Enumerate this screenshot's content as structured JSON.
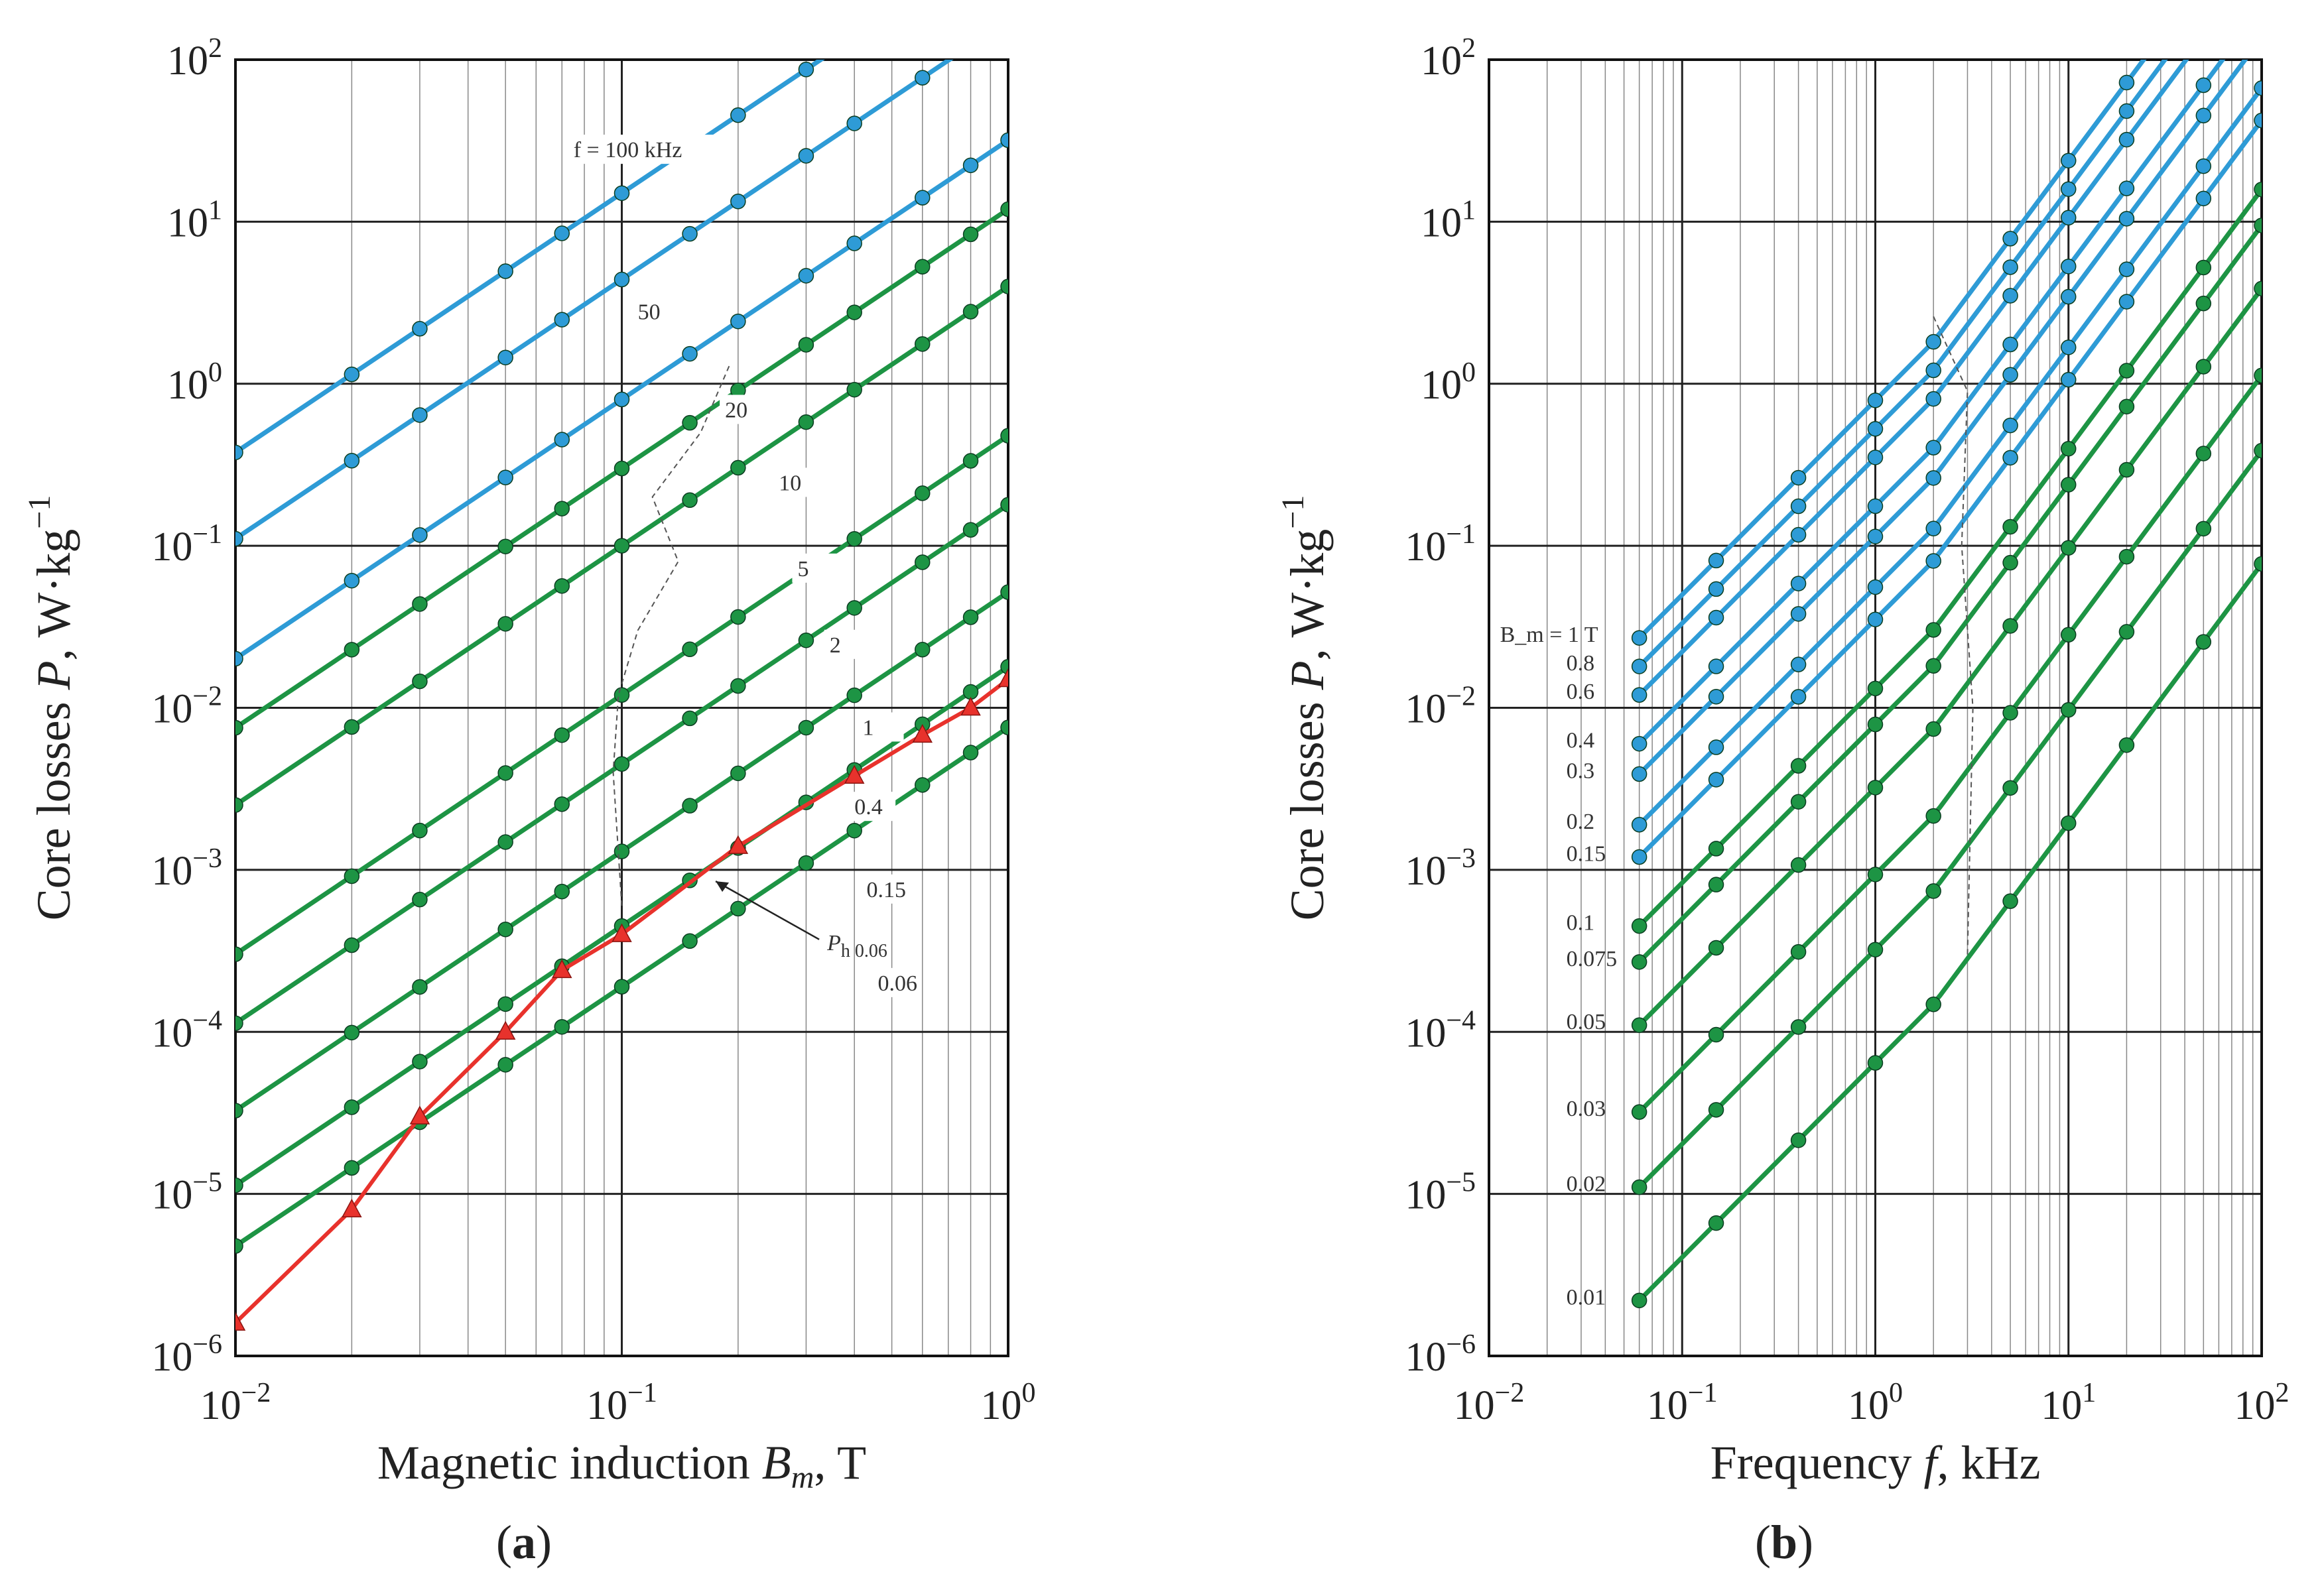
{
  "chart_data": [
    {
      "panel_label": "(a)",
      "panel_letter": "a",
      "type": "line",
      "scale": "log-log",
      "xlabel": "Magnetic induction B_m, T",
      "xlabel_parts": {
        "prefix": "Magnetic induction ",
        "var": "B",
        "sub": "m",
        "suffix": ", T"
      },
      "ylabel": "Core losses P, W·kg⁻¹",
      "ylabel_parts": {
        "prefix": "Core losses ",
        "var": "P",
        "suffix": ", W·kg",
        "sup": "−1"
      },
      "xlim": [
        0.01,
        1
      ],
      "ylim": [
        1e-06,
        100
      ],
      "x_ticks": [
        {
          "base": "10",
          "exp": "−2"
        },
        {
          "base": "10",
          "exp": "−1"
        },
        {
          "base": "10",
          "exp": "0"
        }
      ],
      "y_ticks": [
        {
          "base": "10",
          "exp": "−6"
        },
        {
          "base": "10",
          "exp": "−5"
        },
        {
          "base": "10",
          "exp": "−4"
        },
        {
          "base": "10",
          "exp": "−3"
        },
        {
          "base": "10",
          "exp": "−2"
        },
        {
          "base": "10",
          "exp": "−1"
        },
        {
          "base": "10",
          "exp": "0"
        },
        {
          "base": "10",
          "exp": "1"
        },
        {
          "base": "10",
          "exp": "2"
        }
      ],
      "series": [
        {
          "name": "f = 100 kHz",
          "label": "f = 100 kHz",
          "color": "#2e9bd6",
          "slope": 1.6,
          "value_at_0_1": 15
        },
        {
          "name": "50",
          "label": "50",
          "color": "#2e9bd6",
          "slope": 1.6,
          "value_at_0_1": 4.4
        },
        {
          "name": "20",
          "label": "20",
          "color": "#2e9bd6",
          "slope": 1.6,
          "value_at_0_1": 0.8
        },
        {
          "name": "10",
          "label": "10",
          "color": "#1d9444",
          "slope": 1.6,
          "value_at_0_1": 0.3
        },
        {
          "name": "5",
          "label": "5",
          "color": "#1d9444",
          "slope": 1.6,
          "value_at_0_1": 0.1
        },
        {
          "name": "2",
          "label": "2",
          "color": "#1d9444",
          "slope": 1.6,
          "value_at_0_1": 0.012
        },
        {
          "name": "1",
          "label": "1",
          "color": "#1d9444",
          "slope": 1.6,
          "value_at_0_1": 0.0045
        },
        {
          "name": "0.4",
          "label": "0.4",
          "color": "#1d9444",
          "slope": 1.6,
          "value_at_0_1": 0.0013
        },
        {
          "name": "0.15",
          "label": "0.15",
          "color": "#1d9444",
          "slope": 1.6,
          "value_at_0_1": 0.00045
        },
        {
          "name": "0.06",
          "label": "0.06",
          "color": "#1d9444",
          "slope": 1.6,
          "value_at_0_1": 0.00019
        }
      ],
      "marker_x": [
        0.01,
        0.02,
        0.03,
        0.05,
        0.07,
        0.1,
        0.15,
        0.2,
        0.3,
        0.4,
        0.6,
        0.8,
        1.0
      ],
      "hysteresis": {
        "name": "P_h 0.06",
        "label_parts": {
          "var": "P",
          "sub": "h 0.06"
        },
        "color": "#e8322c",
        "x": [
          0.01,
          0.02,
          0.03,
          0.05,
          0.07,
          0.1,
          0.2,
          0.4,
          0.6,
          0.8,
          1.0
        ],
        "y": [
          1.6e-06,
          8e-06,
          3e-05,
          0.0001,
          0.00024,
          0.0004,
          0.0014,
          0.0038,
          0.0068,
          0.01,
          0.015
        ]
      }
    },
    {
      "panel_label": "(b)",
      "panel_letter": "b",
      "type": "line",
      "scale": "log-log",
      "xlabel": "Frequency f, kHz",
      "xlabel_parts": {
        "prefix": "Frequency ",
        "var": "f",
        "suffix": ", kHz"
      },
      "ylabel": "Core losses P, W·kg⁻¹",
      "ylabel_parts": {
        "prefix": "Core losses ",
        "var": "P",
        "suffix": ", W·kg",
        "sup": "−1"
      },
      "xlim": [
        0.01,
        100
      ],
      "ylim": [
        1e-06,
        100
      ],
      "x_ticks": [
        {
          "base": "10",
          "exp": "−2"
        },
        {
          "base": "10",
          "exp": "−1"
        },
        {
          "base": "10",
          "exp": "0"
        },
        {
          "base": "10",
          "exp": "1"
        },
        {
          "base": "10",
          "exp": "2"
        }
      ],
      "y_ticks": [
        {
          "base": "10",
          "exp": "−6"
        },
        {
          "base": "10",
          "exp": "−5"
        },
        {
          "base": "10",
          "exp": "−4"
        },
        {
          "base": "10",
          "exp": "−3"
        },
        {
          "base": "10",
          "exp": "−2"
        },
        {
          "base": "10",
          "exp": "−1"
        },
        {
          "base": "10",
          "exp": "0"
        },
        {
          "base": "10",
          "exp": "1"
        },
        {
          "base": "10",
          "exp": "2"
        }
      ],
      "legend_title": "B_m = 1 T",
      "marker_x": [
        0.06,
        0.15,
        0.4,
        1.0,
        2.0,
        5.0,
        10,
        20,
        50,
        100
      ],
      "series": [
        {
          "name": "1 T",
          "label": "1 T",
          "color": "#2e9bd6",
          "y_start": 0.027,
          "slope_low": 1.2,
          "slope_high": 1.6
        },
        {
          "name": "0.8",
          "label": "0.8",
          "color": "#2e9bd6",
          "y_start": 0.018,
          "slope_low": 1.2,
          "slope_high": 1.6
        },
        {
          "name": "0.6",
          "label": "0.6",
          "color": "#2e9bd6",
          "y_start": 0.012,
          "slope_low": 1.2,
          "slope_high": 1.6
        },
        {
          "name": "0.4",
          "label": "0.4",
          "color": "#2e9bd6",
          "y_start": 0.006,
          "slope_low": 1.2,
          "slope_high": 1.6
        },
        {
          "name": "0.3",
          "label": "0.3",
          "color": "#2e9bd6",
          "y_start": 0.0039,
          "slope_low": 1.2,
          "slope_high": 1.6
        },
        {
          "name": "0.2",
          "label": "0.2",
          "color": "#2e9bd6",
          "y_start": 0.0019,
          "slope_low": 1.2,
          "slope_high": 1.6
        },
        {
          "name": "0.15",
          "label": "0.15",
          "color": "#2e9bd6",
          "y_start": 0.0012,
          "slope_low": 1.2,
          "slope_high": 1.6
        },
        {
          "name": "0.1",
          "label": "0.1",
          "color": "#1d9444",
          "y_start": 0.00045,
          "slope_low": 1.2,
          "slope_high": 1.6
        },
        {
          "name": "0.075",
          "label": "0.075",
          "color": "#1d9444",
          "y_start": 0.00027,
          "slope_low": 1.2,
          "slope_high": 1.6
        },
        {
          "name": "0.05",
          "label": "0.05",
          "color": "#1d9444",
          "y_start": 0.00011,
          "slope_low": 1.2,
          "slope_high": 1.6
        },
        {
          "name": "0.03",
          "label": "0.03",
          "color": "#1d9444",
          "y_start": 3.2e-05,
          "slope_low": 1.2,
          "slope_high": 1.6
        },
        {
          "name": "0.02",
          "label": "0.02",
          "color": "#1d9444",
          "y_start": 1.1e-05,
          "slope_low": 1.2,
          "slope_high": 1.6
        },
        {
          "name": "0.01",
          "label": "0.01",
          "color": "#1d9444",
          "y_start": 2.2e-06,
          "slope_low": 1.2,
          "slope_high": 1.6
        }
      ]
    }
  ]
}
